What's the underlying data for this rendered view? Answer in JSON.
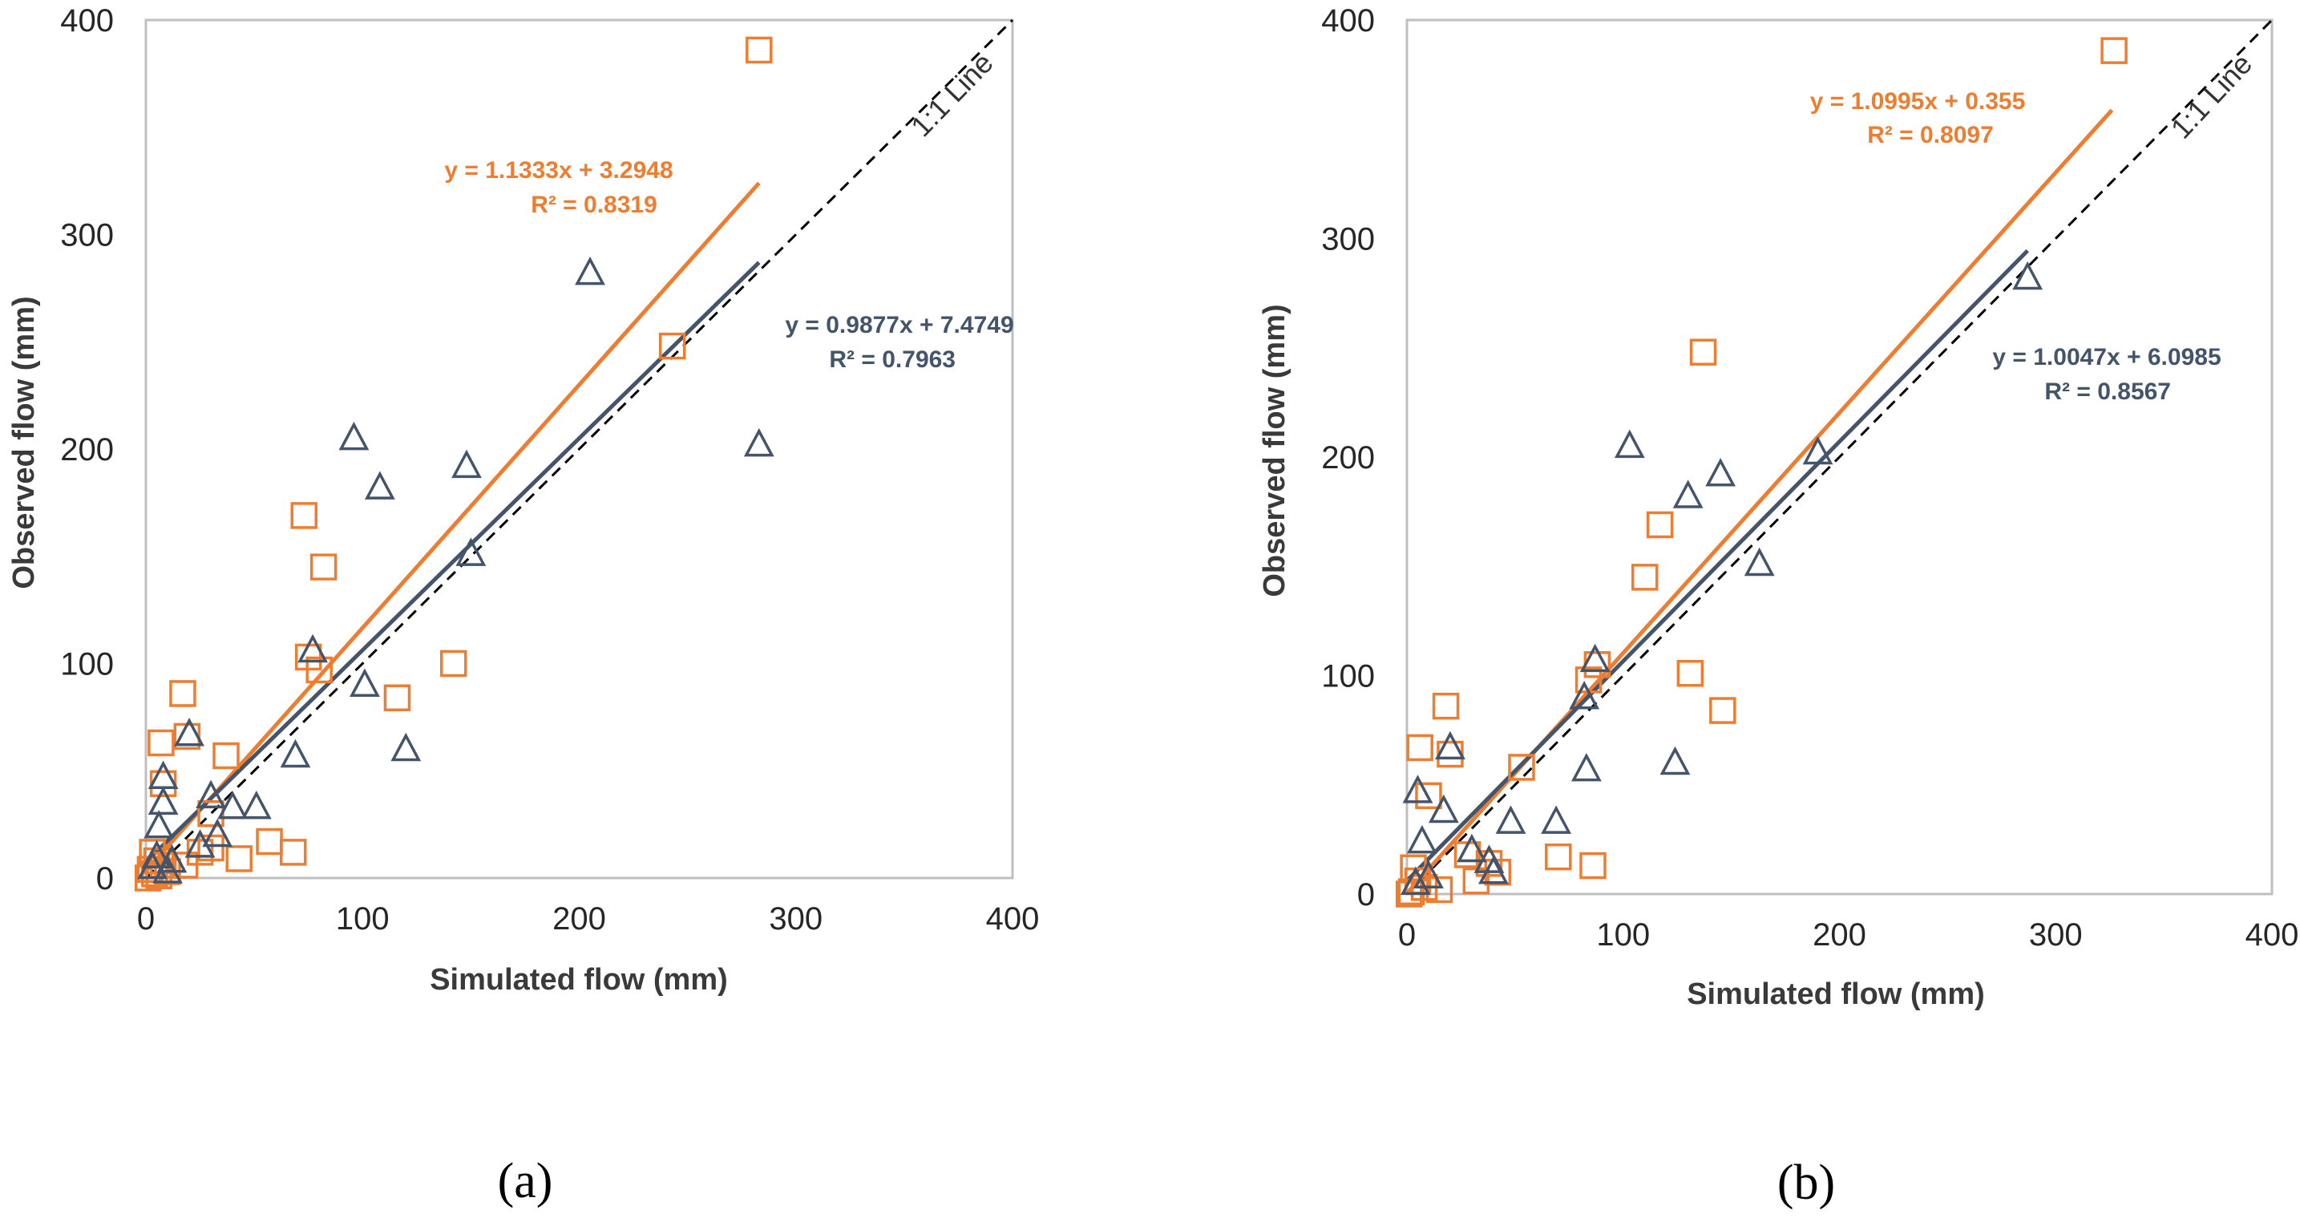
{
  "chart_data": [
    {
      "type": "scatter",
      "panel_label": "(a)",
      "xlabel": "Simulated flow (mm)",
      "ylabel": "Observed flow (mm)",
      "xlim": [
        0,
        400
      ],
      "ylim": [
        0,
        400
      ],
      "x_ticks": [
        0,
        100,
        200,
        300,
        400
      ],
      "y_ticks": [
        0,
        100,
        200,
        300,
        400
      ],
      "one_to_one_label": "1:1 Line",
      "series": [
        {
          "name": "squares",
          "marker": "square",
          "color": "#ED7D31",
          "points": [
            [
              283,
              386
            ],
            [
              243,
              248
            ],
            [
              142,
              100
            ],
            [
              116,
              84
            ],
            [
              82,
              145
            ],
            [
              73,
              169
            ],
            [
              75,
              103
            ],
            [
              80,
              97
            ],
            [
              17,
              86
            ],
            [
              19,
              66
            ],
            [
              7,
              63
            ],
            [
              8,
              44
            ],
            [
              37,
              57
            ],
            [
              18,
              6
            ],
            [
              25,
              12
            ],
            [
              30,
              30
            ],
            [
              30,
              14
            ],
            [
              43,
              9
            ],
            [
              57,
              17
            ],
            [
              68,
              12
            ],
            [
              3,
              12
            ],
            [
              5,
              8
            ],
            [
              2,
              4
            ],
            [
              4,
              2
            ],
            [
              6,
              1
            ],
            [
              1,
              0
            ],
            [
              8,
              6
            ],
            [
              10,
              3
            ]
          ],
          "trendline": {
            "slope": 1.1333,
            "intercept": 3.2948,
            "x_range": [
              0,
              283
            ],
            "equation": "y = 1.1333x + 3.2948",
            "r2": "R² = 0.8319"
          }
        },
        {
          "name": "triangles",
          "marker": "triangle",
          "color": "#44546A",
          "points": [
            [
              283,
              202
            ],
            [
              205,
              282
            ],
            [
              148,
              192
            ],
            [
              150,
              151
            ],
            [
              96,
              205
            ],
            [
              108,
              182
            ],
            [
              77,
              106
            ],
            [
              101,
              90
            ],
            [
              120,
              60
            ],
            [
              69,
              57
            ],
            [
              51,
              33
            ],
            [
              40,
              33
            ],
            [
              30,
              38
            ],
            [
              33,
              20
            ],
            [
              8,
              47
            ],
            [
              8,
              35
            ],
            [
              6,
              24
            ],
            [
              20,
              67
            ],
            [
              25,
              15
            ],
            [
              5,
              10
            ],
            [
              3,
              5
            ],
            [
              10,
              3
            ],
            [
              12,
              8
            ]
          ],
          "trendline": {
            "slope": 0.9877,
            "intercept": 7.4749,
            "x_range": [
              0,
              283
            ],
            "equation": "y = 0.9877x + 7.4749",
            "r2": "R² = 0.7963"
          }
        }
      ]
    },
    {
      "type": "scatter",
      "panel_label": "(b)",
      "xlabel": "Simulated flow (mm)",
      "ylabel": "Observed flow (mm)",
      "xlim": [
        0,
        400
      ],
      "ylim": [
        0,
        400
      ],
      "x_ticks": [
        0,
        100,
        200,
        300,
        400
      ],
      "y_ticks": [
        0,
        100,
        200,
        300,
        400
      ],
      "one_to_one_label": "1:1 Line",
      "series": [
        {
          "name": "squares",
          "marker": "square",
          "color": "#ED7D31",
          "points": [
            [
              327,
              386
            ],
            [
              137,
              248
            ],
            [
              117,
              169
            ],
            [
              110,
              145
            ],
            [
              131,
              101
            ],
            [
              146,
              84
            ],
            [
              88,
              105
            ],
            [
              84,
              98
            ],
            [
              18,
              86
            ],
            [
              6,
              67
            ],
            [
              20,
              64
            ],
            [
              10,
              45
            ],
            [
              53,
              58
            ],
            [
              70,
              17
            ],
            [
              86,
              13
            ],
            [
              42,
              10
            ],
            [
              38,
              14
            ],
            [
              28,
              18
            ],
            [
              32,
              6
            ],
            [
              3,
              12
            ],
            [
              5,
              6
            ],
            [
              8,
              3
            ],
            [
              2,
              1
            ],
            [
              15,
              2
            ],
            [
              1,
              0
            ]
          ],
          "trendline": {
            "slope": 1.0995,
            "intercept": 0.355,
            "x_range": [
              0,
              326
            ],
            "equation": "y = 1.0995x + 0.355",
            "r2": "R² = 0.8097"
          }
        },
        {
          "name": "triangles",
          "marker": "triangle",
          "color": "#44546A",
          "points": [
            [
              287,
              282
            ],
            [
              190,
              202
            ],
            [
              145,
              192
            ],
            [
              130,
              182
            ],
            [
              103,
              205
            ],
            [
              163,
              151
            ],
            [
              87,
              107
            ],
            [
              82,
              90
            ],
            [
              124,
              60
            ],
            [
              83,
              57
            ],
            [
              69,
              33
            ],
            [
              48,
              33
            ],
            [
              20,
              67
            ],
            [
              17,
              38
            ],
            [
              5,
              47
            ],
            [
              7,
              24
            ],
            [
              30,
              20
            ],
            [
              38,
              15
            ],
            [
              40,
              10
            ],
            [
              4,
              5
            ],
            [
              10,
              8
            ]
          ],
          "trendline": {
            "slope": 1.0047,
            "intercept": 6.0985,
            "x_range": [
              0,
              287
            ],
            "equation": "y = 1.0047x + 6.0985",
            "r2": "R² = 0.8567"
          }
        }
      ]
    }
  ]
}
